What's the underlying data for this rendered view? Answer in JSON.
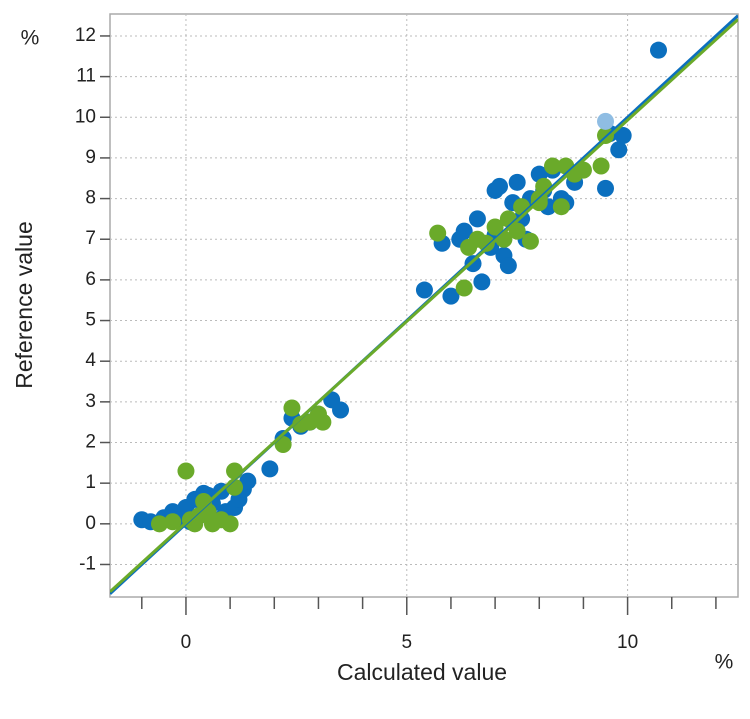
{
  "chart_data": {
    "type": "scatter",
    "x_label": "Calculated value",
    "y_label": "Reference value",
    "x_unit": "%",
    "y_unit": "%",
    "xlim": [
      -1.72,
      12.5
    ],
    "ylim": [
      -1.8,
      12.54
    ],
    "xticks": [
      0,
      5,
      10
    ],
    "xminorticks": [
      -1,
      1,
      2,
      3,
      4,
      6,
      7,
      8,
      9,
      11,
      12
    ],
    "yticks": [
      -1,
      0,
      1,
      2,
      3,
      4,
      5,
      6,
      7,
      8,
      9,
      10,
      11,
      12
    ],
    "grid": true,
    "series": [
      {
        "color": "#0b6fbe",
        "trendline": {
          "slope": 1.0,
          "intercept": 0.0
        },
        "x": [
          -1,
          -0.8,
          -0.5,
          -0.3,
          -0.2,
          0,
          0.1,
          0.2,
          0.3,
          0.5,
          0.6,
          0.8,
          0.9,
          1.1,
          1.2,
          1.3,
          1.4,
          1.9,
          0.4,
          0.7,
          2.2,
          2.4,
          2.6,
          3.0,
          3.3,
          3.5,
          2.8,
          5.4,
          6.0,
          5.8,
          6.2,
          6.3,
          6.5,
          6.6,
          6.7,
          6.9,
          7.0,
          7.1,
          7.2,
          7.3,
          7.4,
          7.5,
          7.6,
          7.8,
          8.0,
          8.2,
          8.3,
          8.5,
          8.6,
          8.8,
          9.5,
          9.6,
          9.8,
          9.9,
          10.7,
          7.0,
          7.7,
          8.1
        ],
        "values": [
          0.1,
          0.05,
          0.15,
          0.3,
          0.1,
          0.4,
          0.05,
          0.6,
          0.2,
          0.7,
          0.5,
          0.8,
          0.3,
          0.4,
          0.6,
          0.85,
          1.05,
          1.35,
          0.75,
          0.1,
          2.1,
          2.6,
          2.4,
          2.6,
          3.05,
          2.8,
          2.5,
          5.75,
          5.6,
          6.9,
          7.0,
          7.2,
          6.4,
          7.5,
          5.95,
          6.8,
          8.2,
          8.3,
          6.6,
          6.35,
          7.9,
          8.4,
          7.5,
          8.0,
          8.6,
          7.8,
          8.7,
          8.0,
          7.9,
          8.4,
          8.25,
          9.6,
          9.2,
          9.55,
          11.65,
          7.1,
          7.0,
          8.2
        ]
      },
      {
        "color": "#6aaa2a",
        "trendline": {
          "slope": 0.99,
          "intercept": 0.03
        },
        "x": [
          -0.6,
          -0.3,
          0,
          0.1,
          0.2,
          0.3,
          0.4,
          0.6,
          0.8,
          1.0,
          1.1,
          1.1,
          0.5,
          2.2,
          2.4,
          2.6,
          2.8,
          3.0,
          3.1,
          5.7,
          6.3,
          6.4,
          6.6,
          6.8,
          7.0,
          7.2,
          7.3,
          7.6,
          7.8,
          8.0,
          8.1,
          8.3,
          8.5,
          8.6,
          8.8,
          9.0,
          9.4,
          9.5,
          8.0,
          7.5
        ],
        "values": [
          0.0,
          0.05,
          1.3,
          0.1,
          0.0,
          0.2,
          0.55,
          0.0,
          0.1,
          0.0,
          1.3,
          0.9,
          0.3,
          1.95,
          2.85,
          2.45,
          2.5,
          2.7,
          2.5,
          7.15,
          5.8,
          6.8,
          7.0,
          6.9,
          7.3,
          7.0,
          7.5,
          7.8,
          6.95,
          8.0,
          8.3,
          8.8,
          7.8,
          8.8,
          8.6,
          8.7,
          8.8,
          9.55,
          7.9,
          7.2
        ]
      },
      {
        "color": "#8fbde3",
        "x": [
          9.5
        ],
        "values": [
          9.9
        ]
      }
    ]
  }
}
